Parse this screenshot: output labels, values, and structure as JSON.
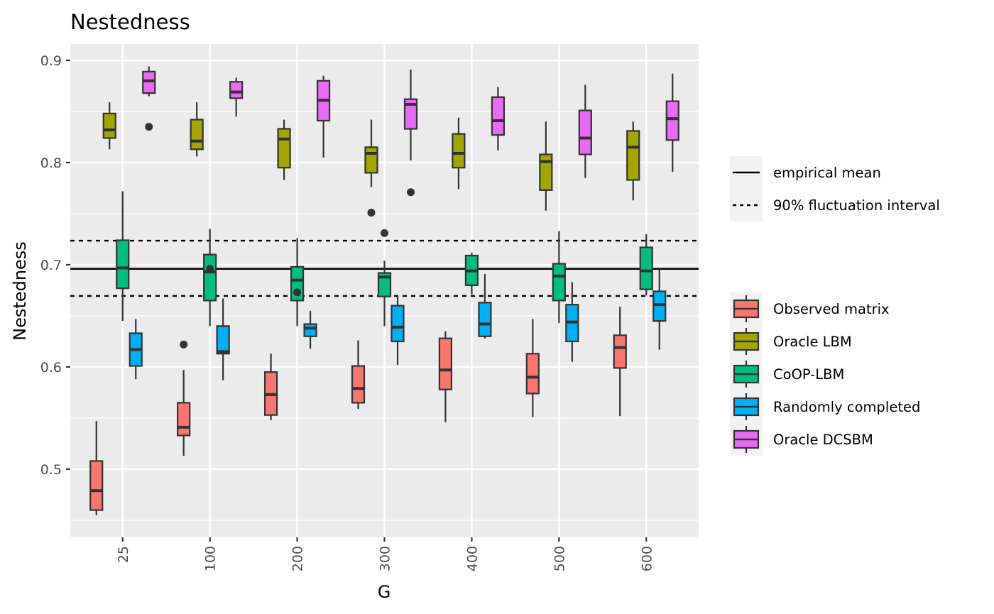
{
  "chart_data": {
    "type": "box",
    "title": "Nestedness",
    "xlabel": "G",
    "ylabel": "Nestedness",
    "categories": [
      "25",
      "100",
      "200",
      "300",
      "400",
      "500",
      "600"
    ],
    "ylim": [
      0.4333,
      0.916
    ],
    "yticks": [
      0.5,
      0.6,
      0.7,
      0.8,
      0.9
    ],
    "ytick_labels": [
      "0.5",
      "0.6",
      "0.7",
      "0.8",
      "0.9"
    ],
    "grid": true,
    "reference_lines": [
      {
        "name": "empirical mean",
        "value": 0.696,
        "style": "solid"
      },
      {
        "name": "90% fluctuation interval",
        "value": 0.7236,
        "style": "dashed"
      },
      {
        "name": "90% fluctuation interval",
        "value": 0.6695,
        "style": "dashed"
      }
    ],
    "line_legend": {
      "position": "right",
      "entries": [
        {
          "label": "empirical mean",
          "style": "solid"
        },
        {
          "label": "90% fluctuation interval",
          "style": "dashed"
        }
      ]
    },
    "fill_legend": {
      "position": "right",
      "entries": [
        "Observed matrix",
        "Oracle LBM",
        "CoOP-LBM",
        "Randomly completed",
        "Oracle DCSBM"
      ]
    },
    "series": [
      {
        "name": "Observed matrix",
        "color": "#F8766D",
        "boxes": [
          {
            "category": "25",
            "whisker_low": 0.455,
            "q1": 0.46,
            "median": 0.479,
            "q3": 0.508,
            "whisker_high": 0.547,
            "outliers": []
          },
          {
            "category": "100",
            "whisker_low": 0.513,
            "q1": 0.533,
            "median": 0.541,
            "q3": 0.565,
            "whisker_high": 0.597,
            "outliers": [
              0.622
            ]
          },
          {
            "category": "200",
            "whisker_low": 0.548,
            "q1": 0.553,
            "median": 0.573,
            "q3": 0.595,
            "whisker_high": 0.613,
            "outliers": []
          },
          {
            "category": "300",
            "whisker_low": 0.559,
            "q1": 0.565,
            "median": 0.579,
            "q3": 0.601,
            "whisker_high": 0.626,
            "outliers": []
          },
          {
            "category": "400",
            "whisker_low": 0.546,
            "q1": 0.578,
            "median": 0.597,
            "q3": 0.628,
            "whisker_high": 0.635,
            "outliers": []
          },
          {
            "category": "500",
            "whisker_low": 0.551,
            "q1": 0.574,
            "median": 0.59,
            "q3": 0.613,
            "whisker_high": 0.647,
            "outliers": []
          },
          {
            "category": "600",
            "whisker_low": 0.552,
            "q1": 0.599,
            "median": 0.619,
            "q3": 0.631,
            "whisker_high": 0.659,
            "outliers": []
          }
        ]
      },
      {
        "name": "Oracle LBM",
        "color": "#A3A500",
        "boxes": [
          {
            "category": "25",
            "whisker_low": 0.813,
            "q1": 0.824,
            "median": 0.832,
            "q3": 0.848,
            "whisker_high": 0.859,
            "outliers": []
          },
          {
            "category": "100",
            "whisker_low": 0.806,
            "q1": 0.813,
            "median": 0.821,
            "q3": 0.842,
            "whisker_high": 0.859,
            "outliers": []
          },
          {
            "category": "200",
            "whisker_low": 0.783,
            "q1": 0.795,
            "median": 0.823,
            "q3": 0.833,
            "whisker_high": 0.842,
            "outliers": []
          },
          {
            "category": "300",
            "whisker_low": 0.776,
            "q1": 0.79,
            "median": 0.809,
            "q3": 0.815,
            "whisker_high": 0.842,
            "outliers": [
              0.751
            ]
          },
          {
            "category": "400",
            "whisker_low": 0.774,
            "q1": 0.795,
            "median": 0.809,
            "q3": 0.828,
            "whisker_high": 0.844,
            "outliers": []
          },
          {
            "category": "500",
            "whisker_low": 0.753,
            "q1": 0.773,
            "median": 0.801,
            "q3": 0.808,
            "whisker_high": 0.84,
            "outliers": []
          },
          {
            "category": "600",
            "whisker_low": 0.763,
            "q1": 0.783,
            "median": 0.815,
            "q3": 0.831,
            "whisker_high": 0.84,
            "outliers": []
          }
        ]
      },
      {
        "name": "CoOP-LBM",
        "color": "#00BF7D",
        "boxes": [
          {
            "category": "25",
            "whisker_low": 0.645,
            "q1": 0.677,
            "median": 0.697,
            "q3": 0.724,
            "whisker_high": 0.772,
            "outliers": []
          },
          {
            "category": "100",
            "whisker_low": 0.64,
            "q1": 0.665,
            "median": 0.693,
            "q3": 0.71,
            "whisker_high": 0.735,
            "outliers": [
              0.696
            ]
          },
          {
            "category": "200",
            "whisker_low": 0.64,
            "q1": 0.665,
            "median": 0.685,
            "q3": 0.698,
            "whisker_high": 0.726,
            "outliers": [
              0.673
            ]
          },
          {
            "category": "300",
            "whisker_low": 0.64,
            "q1": 0.669,
            "median": 0.688,
            "q3": 0.692,
            "whisker_high": 0.704,
            "outliers": [
              0.731
            ]
          },
          {
            "category": "400",
            "whisker_low": 0.671,
            "q1": 0.68,
            "median": 0.694,
            "q3": 0.709,
            "whisker_high": 0.712,
            "outliers": []
          },
          {
            "category": "500",
            "whisker_low": 0.643,
            "q1": 0.665,
            "median": 0.689,
            "q3": 0.701,
            "whisker_high": 0.733,
            "outliers": []
          },
          {
            "category": "600",
            "whisker_low": 0.67,
            "q1": 0.676,
            "median": 0.694,
            "q3": 0.717,
            "whisker_high": 0.73,
            "outliers": []
          }
        ]
      },
      {
        "name": "Randomly completed",
        "color": "#00B0F6",
        "boxes": [
          {
            "category": "25",
            "whisker_low": 0.588,
            "q1": 0.601,
            "median": 0.617,
            "q3": 0.633,
            "whisker_high": 0.647,
            "outliers": []
          },
          {
            "category": "100",
            "whisker_low": 0.587,
            "q1": 0.613,
            "median": 0.615,
            "q3": 0.64,
            "whisker_high": 0.667,
            "outliers": []
          },
          {
            "category": "200",
            "whisker_low": 0.618,
            "q1": 0.63,
            "median": 0.638,
            "q3": 0.642,
            "whisker_high": 0.655,
            "outliers": []
          },
          {
            "category": "300",
            "whisker_low": 0.602,
            "q1": 0.625,
            "median": 0.639,
            "q3": 0.66,
            "whisker_high": 0.67,
            "outliers": []
          },
          {
            "category": "400",
            "whisker_low": 0.628,
            "q1": 0.63,
            "median": 0.642,
            "q3": 0.663,
            "whisker_high": 0.691,
            "outliers": []
          },
          {
            "category": "500",
            "whisker_low": 0.605,
            "q1": 0.625,
            "median": 0.644,
            "q3": 0.661,
            "whisker_high": 0.683,
            "outliers": []
          },
          {
            "category": "600",
            "whisker_low": 0.617,
            "q1": 0.645,
            "median": 0.661,
            "q3": 0.674,
            "whisker_high": 0.696,
            "outliers": []
          }
        ]
      },
      {
        "name": "Oracle DCSBM",
        "color": "#E76BF3",
        "boxes": [
          {
            "category": "25",
            "whisker_low": 0.865,
            "q1": 0.868,
            "median": 0.88,
            "q3": 0.889,
            "whisker_high": 0.894,
            "outliers": [
              0.835
            ]
          },
          {
            "category": "100",
            "whisker_low": 0.845,
            "q1": 0.863,
            "median": 0.869,
            "q3": 0.879,
            "whisker_high": 0.883,
            "outliers": []
          },
          {
            "category": "200",
            "whisker_low": 0.805,
            "q1": 0.841,
            "median": 0.861,
            "q3": 0.88,
            "whisker_high": 0.885,
            "outliers": []
          },
          {
            "category": "300",
            "whisker_low": 0.802,
            "q1": 0.833,
            "median": 0.857,
            "q3": 0.862,
            "whisker_high": 0.891,
            "outliers": [
              0.771
            ]
          },
          {
            "category": "400",
            "whisker_low": 0.812,
            "q1": 0.827,
            "median": 0.841,
            "q3": 0.864,
            "whisker_high": 0.874,
            "outliers": []
          },
          {
            "category": "500",
            "whisker_low": 0.785,
            "q1": 0.808,
            "median": 0.824,
            "q3": 0.851,
            "whisker_high": 0.876,
            "outliers": []
          },
          {
            "category": "600",
            "whisker_low": 0.791,
            "q1": 0.822,
            "median": 0.843,
            "q3": 0.86,
            "whisker_high": 0.887,
            "outliers": []
          }
        ]
      }
    ]
  },
  "colors": {
    "panel_background": "#EBEBEB",
    "grid": "#FFFFFF",
    "box_outline": "#333333",
    "legend_key_background": "#F2F2F2"
  }
}
